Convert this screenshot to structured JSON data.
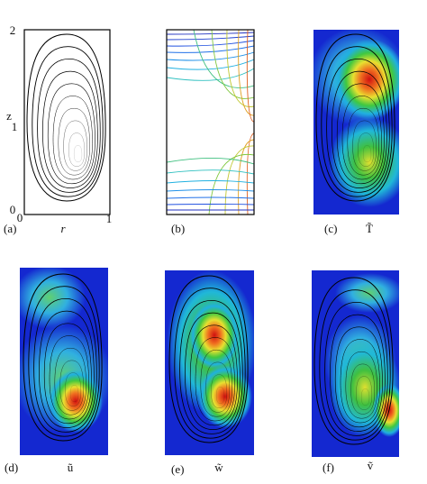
{
  "panels": [
    {
      "label": "(a)",
      "y_ticks": [
        "0",
        "1",
        "2"
      ],
      "y_label": "z",
      "x_ticks": [
        "0",
        "1"
      ],
      "x_label": "r"
    },
    {
      "label": "(b)"
    },
    {
      "label": "(c)",
      "symbol": "T̃"
    },
    {
      "label": "(d)",
      "symbol": "ũ"
    },
    {
      "label": "(e)",
      "symbol": "w̃"
    },
    {
      "label": "(f)",
      "symbol": "ṽ"
    }
  ]
}
